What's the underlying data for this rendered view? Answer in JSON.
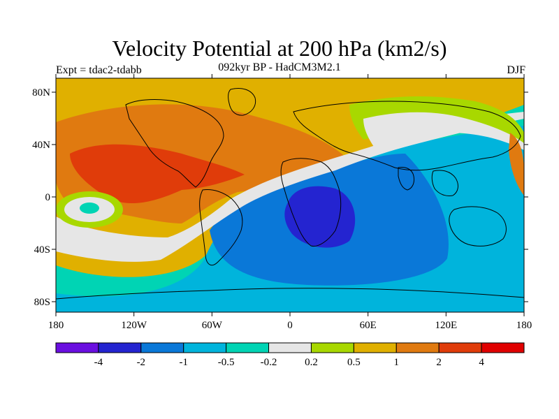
{
  "title": "Velocity Potential at 200 hPa (km2/s)",
  "subtitle": "092kyr BP - HadCM3M2.1",
  "left_string": "Expt = tdac2-tdabb",
  "right_string": "DJF",
  "lat_ticks": [
    "80N",
    "40N",
    "0",
    "40S",
    "80S"
  ],
  "lon_ticks": [
    "180",
    "120W",
    "60W",
    "0",
    "60E",
    "120E",
    "180"
  ],
  "colorbar": {
    "labels": [
      "-4",
      "-2",
      "-1",
      "-0.5",
      "-0.2",
      "0.2",
      "0.5",
      "1",
      "2",
      "4"
    ],
    "colors": [
      "#6a0fe0",
      "#2424d0",
      "#0a78d8",
      "#00b4dc",
      "#00d4b4",
      "#e6e6e6",
      "#a8d800",
      "#e0b000",
      "#e07a10",
      "#e03c0a",
      "#e00000"
    ]
  },
  "palette": {
    "bg_zero": "#e6e6e6",
    "pos_05": "#a8d800",
    "pos_1": "#e0b000",
    "pos_2": "#e07a10",
    "pos_4": "#e03c0a",
    "neg_02": "#00d4b4",
    "neg_05": "#00b4dc",
    "neg_1": "#0a78d8",
    "neg_2": "#2424d0",
    "coast": "#000000"
  }
}
